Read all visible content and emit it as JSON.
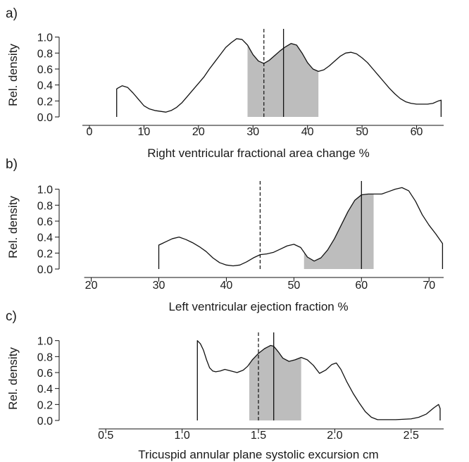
{
  "chart_data": [
    {
      "panel_label": "a)",
      "type": "area",
      "xlabel": "Right ventricular fractional area change %",
      "ylabel": "Rel. density",
      "xlim": [
        -4,
        66
      ],
      "ylim": [
        0,
        1.05
      ],
      "xticks": [
        0,
        10,
        20,
        30,
        40,
        50,
        60
      ],
      "yticks": [
        0.0,
        0.2,
        0.4,
        0.6,
        0.8,
        1.0
      ],
      "ytick_labels": [
        "0.0",
        "0.2",
        "0.4",
        "0.6",
        "0.8",
        "1.0"
      ],
      "shaded_range": [
        29,
        42
      ],
      "dashed_line_x": 32,
      "solid_line_x": 35.6,
      "density": {
        "x": [
          5,
          5.2,
          6,
          7,
          8,
          9,
          10,
          11,
          12,
          13,
          14,
          15,
          16,
          17,
          18,
          19,
          20,
          21,
          22,
          23,
          24,
          25,
          26,
          27,
          28,
          29,
          30,
          31,
          32,
          33,
          34,
          35,
          36,
          37,
          38,
          39,
          40,
          41,
          42,
          43,
          44,
          45,
          46,
          47,
          48,
          49,
          50,
          51,
          52,
          53,
          54,
          55,
          56,
          57,
          58,
          59,
          60,
          61,
          62,
          63,
          64,
          64.5
        ],
        "y": [
          0.35,
          0.36,
          0.39,
          0.37,
          0.3,
          0.22,
          0.14,
          0.1,
          0.08,
          0.07,
          0.06,
          0.08,
          0.12,
          0.18,
          0.26,
          0.34,
          0.42,
          0.5,
          0.6,
          0.69,
          0.78,
          0.87,
          0.93,
          0.98,
          0.97,
          0.9,
          0.78,
          0.7,
          0.67,
          0.71,
          0.77,
          0.83,
          0.88,
          0.92,
          0.9,
          0.8,
          0.68,
          0.6,
          0.57,
          0.59,
          0.64,
          0.7,
          0.76,
          0.8,
          0.81,
          0.79,
          0.74,
          0.68,
          0.6,
          0.52,
          0.44,
          0.36,
          0.29,
          0.23,
          0.19,
          0.17,
          0.16,
          0.16,
          0.16,
          0.17,
          0.2,
          0.21
        ]
      }
    },
    {
      "panel_label": "b)",
      "type": "area",
      "xlabel": "Left ventricular ejection fraction %",
      "ylabel": "Rel. density",
      "xlim": [
        16.5,
        73
      ],
      "ylim": [
        0,
        1.05
      ],
      "xticks": [
        20,
        30,
        40,
        50,
        60,
        70
      ],
      "yticks": [
        0.0,
        0.2,
        0.4,
        0.6,
        0.8,
        1.0
      ],
      "ytick_labels": [
        "0.0",
        "0.2",
        "0.4",
        "0.6",
        "0.8",
        "1.0"
      ],
      "shaded_range": [
        51.5,
        61.8
      ],
      "dashed_line_x": 45,
      "solid_line_x": 60,
      "density": {
        "x": [
          30,
          30.5,
          31,
          32,
          33,
          34,
          35,
          36,
          37,
          38,
          39,
          40,
          41,
          42,
          43,
          44,
          45,
          46,
          47,
          48,
          49,
          50,
          51,
          52,
          53,
          54,
          55,
          56,
          57,
          58,
          59,
          60,
          61,
          62,
          63,
          64,
          65,
          66,
          67,
          68,
          69,
          70,
          71,
          72
        ],
        "y": [
          0.3,
          0.32,
          0.34,
          0.38,
          0.4,
          0.37,
          0.33,
          0.28,
          0.22,
          0.14,
          0.08,
          0.05,
          0.04,
          0.05,
          0.09,
          0.14,
          0.18,
          0.19,
          0.21,
          0.25,
          0.29,
          0.31,
          0.27,
          0.15,
          0.1,
          0.14,
          0.24,
          0.38,
          0.55,
          0.72,
          0.86,
          0.93,
          0.94,
          0.94,
          0.94,
          0.97,
          1.0,
          1.02,
          0.98,
          0.85,
          0.68,
          0.55,
          0.44,
          0.32
        ]
      }
    },
    {
      "panel_label": "c)",
      "type": "area",
      "xlabel": "Tricuspid annular plane systolic excursion cm",
      "ylabel": "Rel. density",
      "xlim": [
        0.25,
        2.75
      ],
      "ylim": [
        0,
        1.05
      ],
      "xticks": [
        0.5,
        1.0,
        1.5,
        2.0,
        2.5
      ],
      "xtick_labels": [
        "0.5",
        "1.0",
        "1.5",
        "2.0",
        "2.5"
      ],
      "yticks": [
        0.0,
        0.2,
        0.4,
        0.6,
        0.8,
        1.0
      ],
      "ytick_labels": [
        "0.0",
        "0.2",
        "0.4",
        "0.6",
        "0.8",
        "1.0"
      ],
      "shaded_range": [
        1.44,
        1.78
      ],
      "dashed_line_x": 1.5,
      "solid_line_x": 1.6,
      "density": {
        "x": [
          1.1,
          1.105,
          1.12,
          1.14,
          1.16,
          1.18,
          1.2,
          1.22,
          1.25,
          1.28,
          1.32,
          1.36,
          1.4,
          1.43,
          1.46,
          1.5,
          1.54,
          1.58,
          1.6,
          1.63,
          1.66,
          1.7,
          1.74,
          1.78,
          1.82,
          1.86,
          1.9,
          1.94,
          1.98,
          2.01,
          2.04,
          2.08,
          2.12,
          2.16,
          2.2,
          2.24,
          2.28,
          2.32,
          2.4,
          2.5,
          2.55,
          2.6,
          2.65,
          2.68,
          2.69
        ],
        "y": [
          1.0,
          0.99,
          0.96,
          0.88,
          0.76,
          0.66,
          0.62,
          0.61,
          0.62,
          0.64,
          0.62,
          0.6,
          0.63,
          0.68,
          0.76,
          0.84,
          0.9,
          0.94,
          0.93,
          0.86,
          0.78,
          0.74,
          0.76,
          0.79,
          0.76,
          0.69,
          0.59,
          0.63,
          0.7,
          0.72,
          0.64,
          0.48,
          0.34,
          0.22,
          0.11,
          0.04,
          0.01,
          0.01,
          0.01,
          0.02,
          0.04,
          0.08,
          0.16,
          0.2,
          0.15
        ]
      }
    }
  ]
}
